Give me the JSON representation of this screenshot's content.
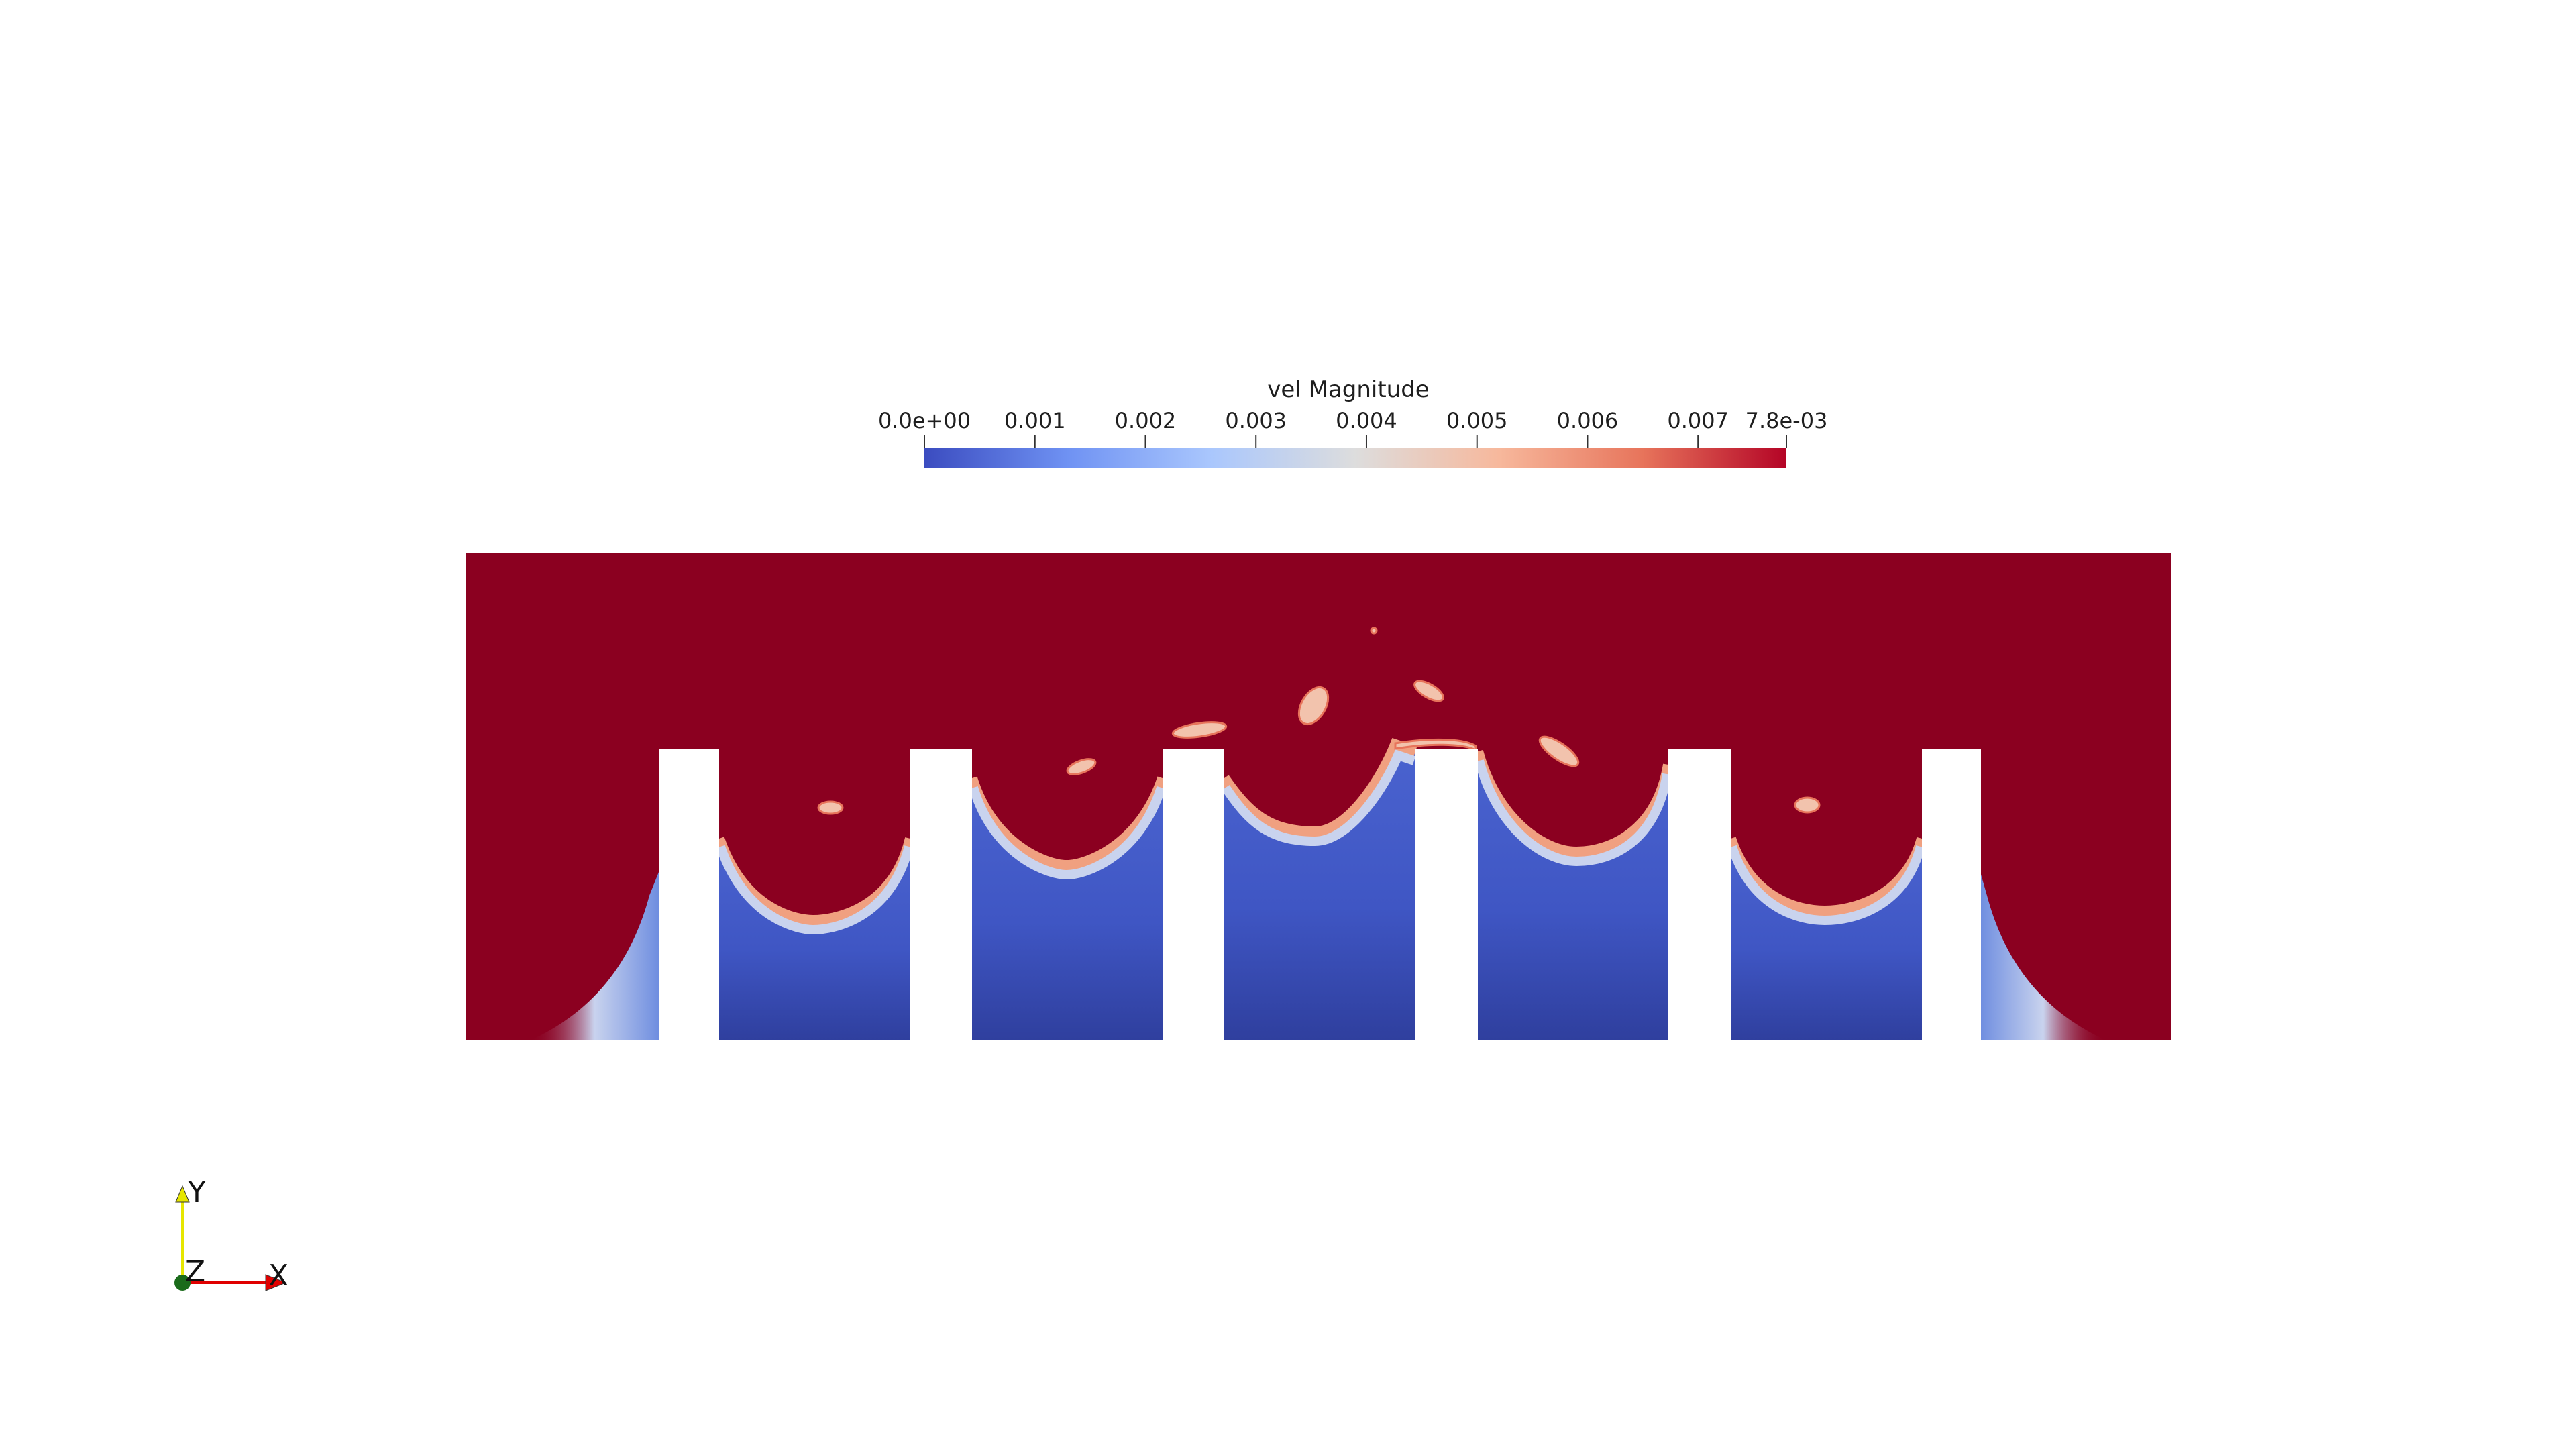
{
  "colorbar": {
    "title": "vel Magnitude",
    "range": [
      0.0,
      0.0078
    ],
    "tick_values": [
      0.0,
      0.001,
      0.002,
      0.003,
      0.004,
      0.005,
      0.006,
      0.007,
      0.0078
    ],
    "tick_labels": [
      "0.0e+00",
      "0.001",
      "0.002",
      "0.003",
      "0.004",
      "0.005",
      "0.006",
      "0.007",
      "7.8e-03"
    ],
    "colormap": [
      "#3b4cc0",
      "#6f92f3",
      "#aac7fd",
      "#dddddd",
      "#f7b89c",
      "#e7745b",
      "#b40426"
    ]
  },
  "scene": {
    "fluid_color_high": "#8b0020",
    "fluid_color_low": "#3b4cc0",
    "obstacle_color": "#ffffff",
    "obstacle_count": 6,
    "cavity_count": 5
  },
  "orientation_axes": {
    "y_label": "Y",
    "z_label": "Z",
    "x_label": "X",
    "y_color": "#e6e600",
    "z_color": "#1a6b1a",
    "x_color": "#e00000"
  }
}
